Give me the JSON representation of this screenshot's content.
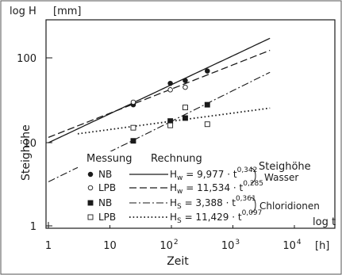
{
  "chart_data": {
    "type": "scatter",
    "title": "",
    "ylabel_top": "log H",
    "yunit": "[mm]",
    "ylabel_side": "Steighöhe",
    "xlabel_axis": "log t",
    "xunit": "[h]",
    "xlabel": "Zeit",
    "xscale": "log",
    "yscale": "log",
    "xlim": [
      1,
      10000
    ],
    "ylim": [
      1,
      200
    ],
    "grid": false,
    "x_ticks": [
      {
        "v": 1,
        "label": "1"
      },
      {
        "v": 10,
        "label": "10"
      },
      {
        "v": 100,
        "label": "10",
        "sup": "2"
      },
      {
        "v": 1000,
        "label": "10",
        "sup": "3"
      },
      {
        "v": 10000,
        "label": "10",
        "sup": "4"
      }
    ],
    "y_ticks": [
      {
        "v": 1,
        "label": "1"
      },
      {
        "v": 10,
        "label": "10"
      },
      {
        "v": 100,
        "label": "100"
      }
    ],
    "legend_headers": {
      "measurement": "Messung",
      "calculation": "Rechnung",
      "rise": "Steighöhe"
    },
    "group_labels": {
      "water": "Wasser",
      "chloride": "Chloridionen"
    },
    "series": [
      {
        "name": "NB",
        "group": "water",
        "marker": "filled-circle",
        "line": "solid",
        "points": [
          [
            24,
            28
          ],
          [
            96,
            50
          ],
          [
            168,
            54
          ],
          [
            384,
            70
          ]
        ],
        "fit": {
          "a": 9.977,
          "b": 0.342,
          "range": [
            1,
            4000
          ]
        },
        "eq": {
          "var": "H",
          "sub": "w",
          "coef": "9,977",
          "exp": "0,342"
        }
      },
      {
        "name": "LPB",
        "group": "water",
        "marker": "open-circle",
        "line": "dashed",
        "points": [
          [
            24,
            30
          ],
          [
            96,
            42
          ],
          [
            168,
            45
          ]
        ],
        "fit": {
          "a": 11.534,
          "b": 0.285,
          "range": [
            1,
            4000
          ]
        },
        "eq": {
          "var": "H",
          "sub": "w",
          "coef": "11,534",
          "exp": "0,285"
        }
      },
      {
        "name": "NB",
        "group": "chloride",
        "marker": "filled-square",
        "line": "dashdot",
        "points": [
          [
            24,
            10.5
          ],
          [
            96,
            18
          ],
          [
            168,
            19.5
          ],
          [
            384,
            28
          ]
        ],
        "fit": {
          "a": 3.388,
          "b": 0.361,
          "range": [
            1,
            4000
          ]
        },
        "eq": {
          "var": "H",
          "sub": "S",
          "coef": "3,388",
          "exp": "0,361"
        }
      },
      {
        "name": "LPB",
        "group": "chloride",
        "marker": "open-square",
        "line": "dotted",
        "points": [
          [
            24,
            15
          ],
          [
            96,
            16
          ],
          [
            168,
            26
          ],
          [
            384,
            16.5
          ]
        ],
        "fit": {
          "a": 11.429,
          "b": 0.097,
          "range": [
            3,
            4000
          ]
        },
        "eq": {
          "var": "H",
          "sub": "S",
          "coef": "11,429",
          "exp": "0,097"
        }
      }
    ]
  }
}
